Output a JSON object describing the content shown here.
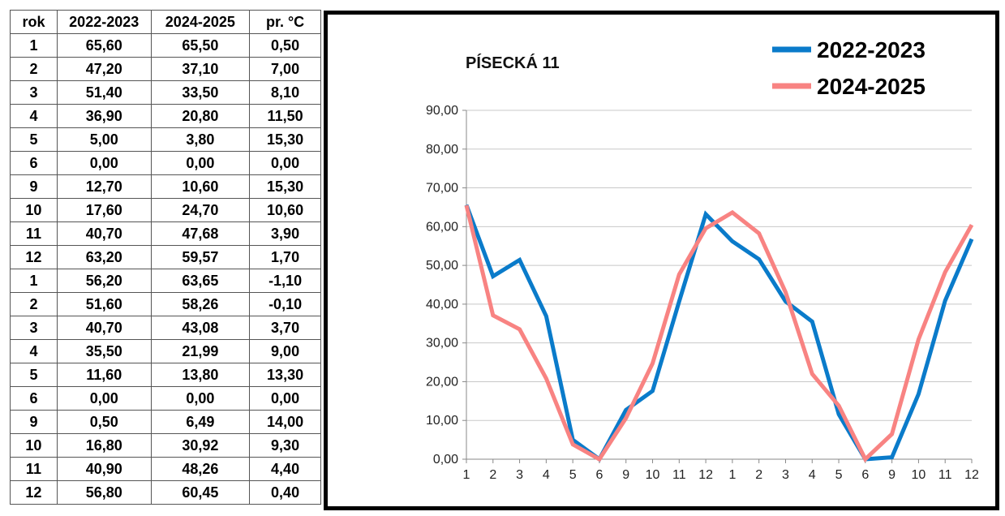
{
  "table": {
    "headers": [
      "rok",
      "2022-2023",
      "2024-2025",
      "pr. °C"
    ],
    "rows": [
      [
        "1",
        "65,60",
        "65,50",
        "0,50"
      ],
      [
        "2",
        "47,20",
        "37,10",
        "7,00"
      ],
      [
        "3",
        "51,40",
        "33,50",
        "8,10"
      ],
      [
        "4",
        "36,90",
        "20,80",
        "11,50"
      ],
      [
        "5",
        "5,00",
        "3,80",
        "15,30"
      ],
      [
        "6",
        "0,00",
        "0,00",
        "0,00"
      ],
      [
        "9",
        "12,70",
        "10,60",
        "15,30"
      ],
      [
        "10",
        "17,60",
        "24,70",
        "10,60"
      ],
      [
        "11",
        "40,70",
        "47,68",
        "3,90"
      ],
      [
        "12",
        "63,20",
        "59,57",
        "1,70"
      ],
      [
        "1",
        "56,20",
        "63,65",
        "-1,10"
      ],
      [
        "2",
        "51,60",
        "58,26",
        "-0,10"
      ],
      [
        "3",
        "40,70",
        "43,08",
        "3,70"
      ],
      [
        "4",
        "35,50",
        "21,99",
        "9,00"
      ],
      [
        "5",
        "11,60",
        "13,80",
        "13,30"
      ],
      [
        "6",
        "0,00",
        "0,00",
        "0,00"
      ],
      [
        "9",
        "0,50",
        "6,49",
        "14,00"
      ],
      [
        "10",
        "16,80",
        "30,92",
        "9,30"
      ],
      [
        "11",
        "40,90",
        "48,26",
        "4,40"
      ],
      [
        "12",
        "56,80",
        "60,45",
        "0,40"
      ]
    ]
  },
  "chart_data": {
    "type": "line",
    "title": "PÍSECKÁ 11",
    "categories": [
      "1",
      "2",
      "3",
      "4",
      "5",
      "6",
      "9",
      "10",
      "11",
      "12",
      "1",
      "2",
      "3",
      "4",
      "5",
      "6",
      "9",
      "10",
      "11",
      "12"
    ],
    "series": [
      {
        "name": "2022-2023",
        "color": "#0A7BCA",
        "values": [
          65.6,
          47.2,
          51.4,
          36.9,
          5.0,
          0.0,
          12.7,
          17.6,
          40.7,
          63.2,
          56.2,
          51.6,
          40.7,
          35.5,
          11.6,
          0.0,
          0.5,
          16.8,
          40.9,
          56.8
        ]
      },
      {
        "name": "2024-2025",
        "color": "#F88382",
        "values": [
          65.5,
          37.1,
          33.5,
          20.8,
          3.8,
          0.0,
          10.6,
          24.7,
          47.68,
          59.57,
          63.65,
          58.26,
          43.08,
          21.99,
          13.8,
          0.0,
          6.49,
          30.92,
          48.26,
          60.45
        ]
      }
    ],
    "ylim": [
      0,
      90
    ],
    "yticks": [
      "0,00",
      "10,00",
      "20,00",
      "30,00",
      "40,00",
      "50,00",
      "60,00",
      "70,00",
      "80,00",
      "90,00"
    ],
    "grid": true,
    "legend": "top-right"
  }
}
